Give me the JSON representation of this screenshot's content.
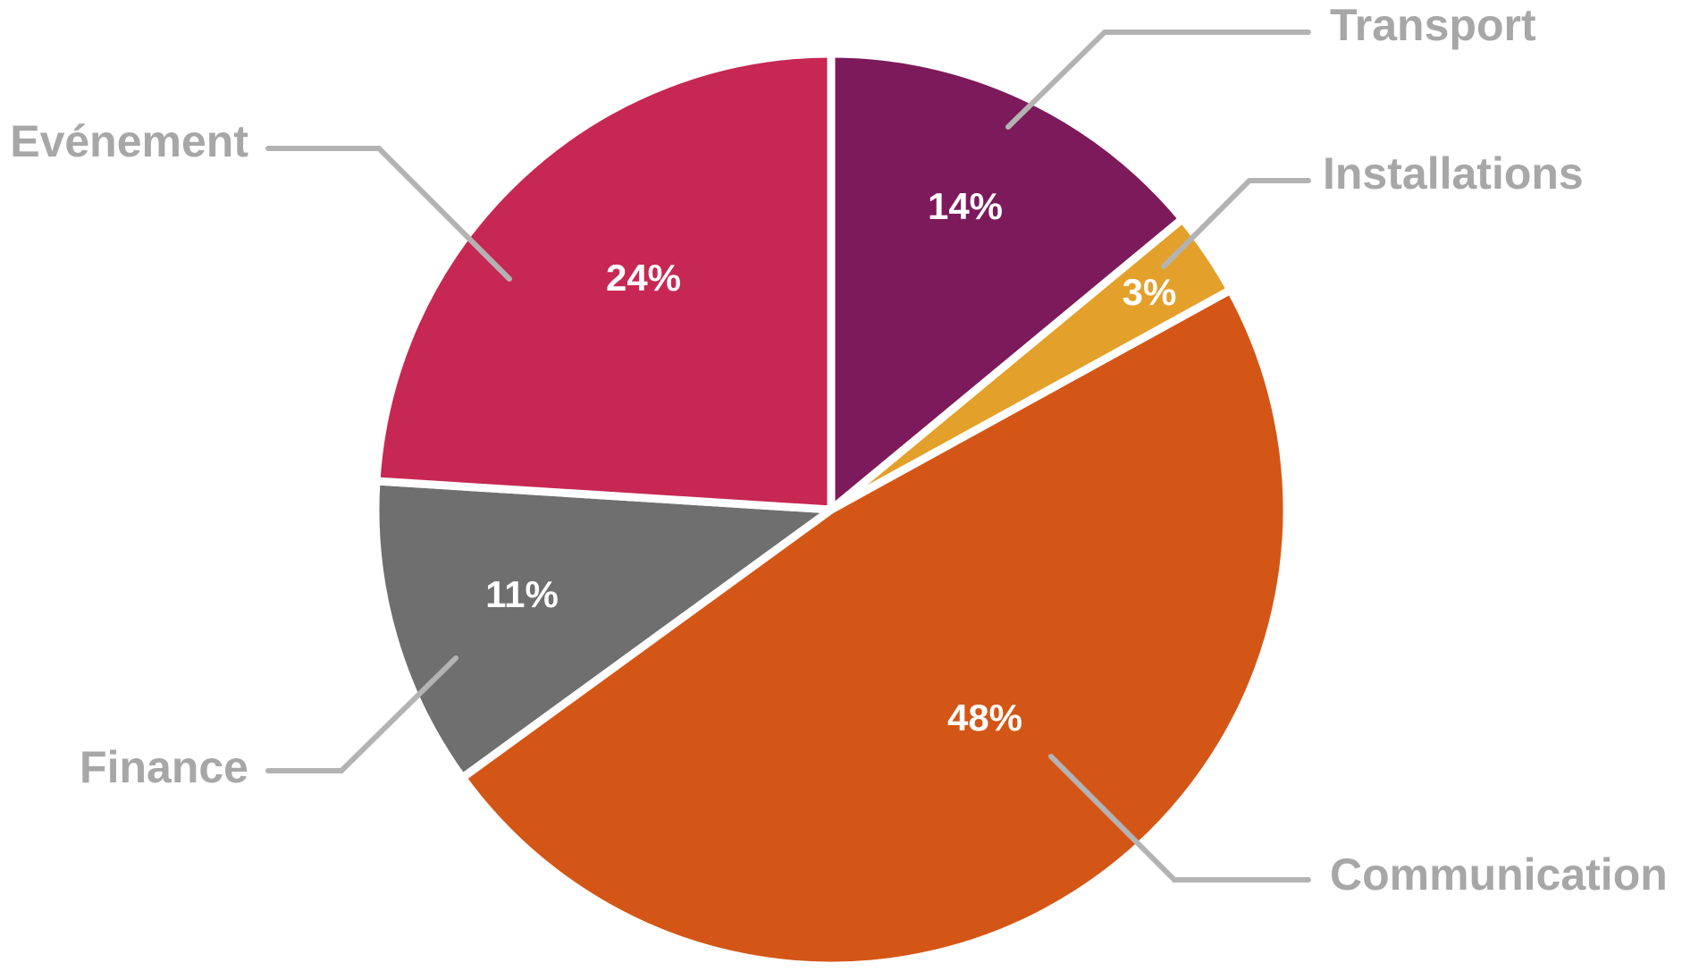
{
  "chart_data": {
    "type": "pie",
    "categories": [
      "Transport",
      "Installations",
      "Communication",
      "Finance",
      "Evénement"
    ],
    "values": [
      14,
      3,
      48,
      11,
      24
    ],
    "value_labels": [
      "14%",
      "3%",
      "48%",
      "11%",
      "24%"
    ],
    "colors": [
      "#7d1a5b",
      "#e3a02a",
      "#d45616",
      "#6f6f6f",
      "#c72753"
    ]
  }
}
